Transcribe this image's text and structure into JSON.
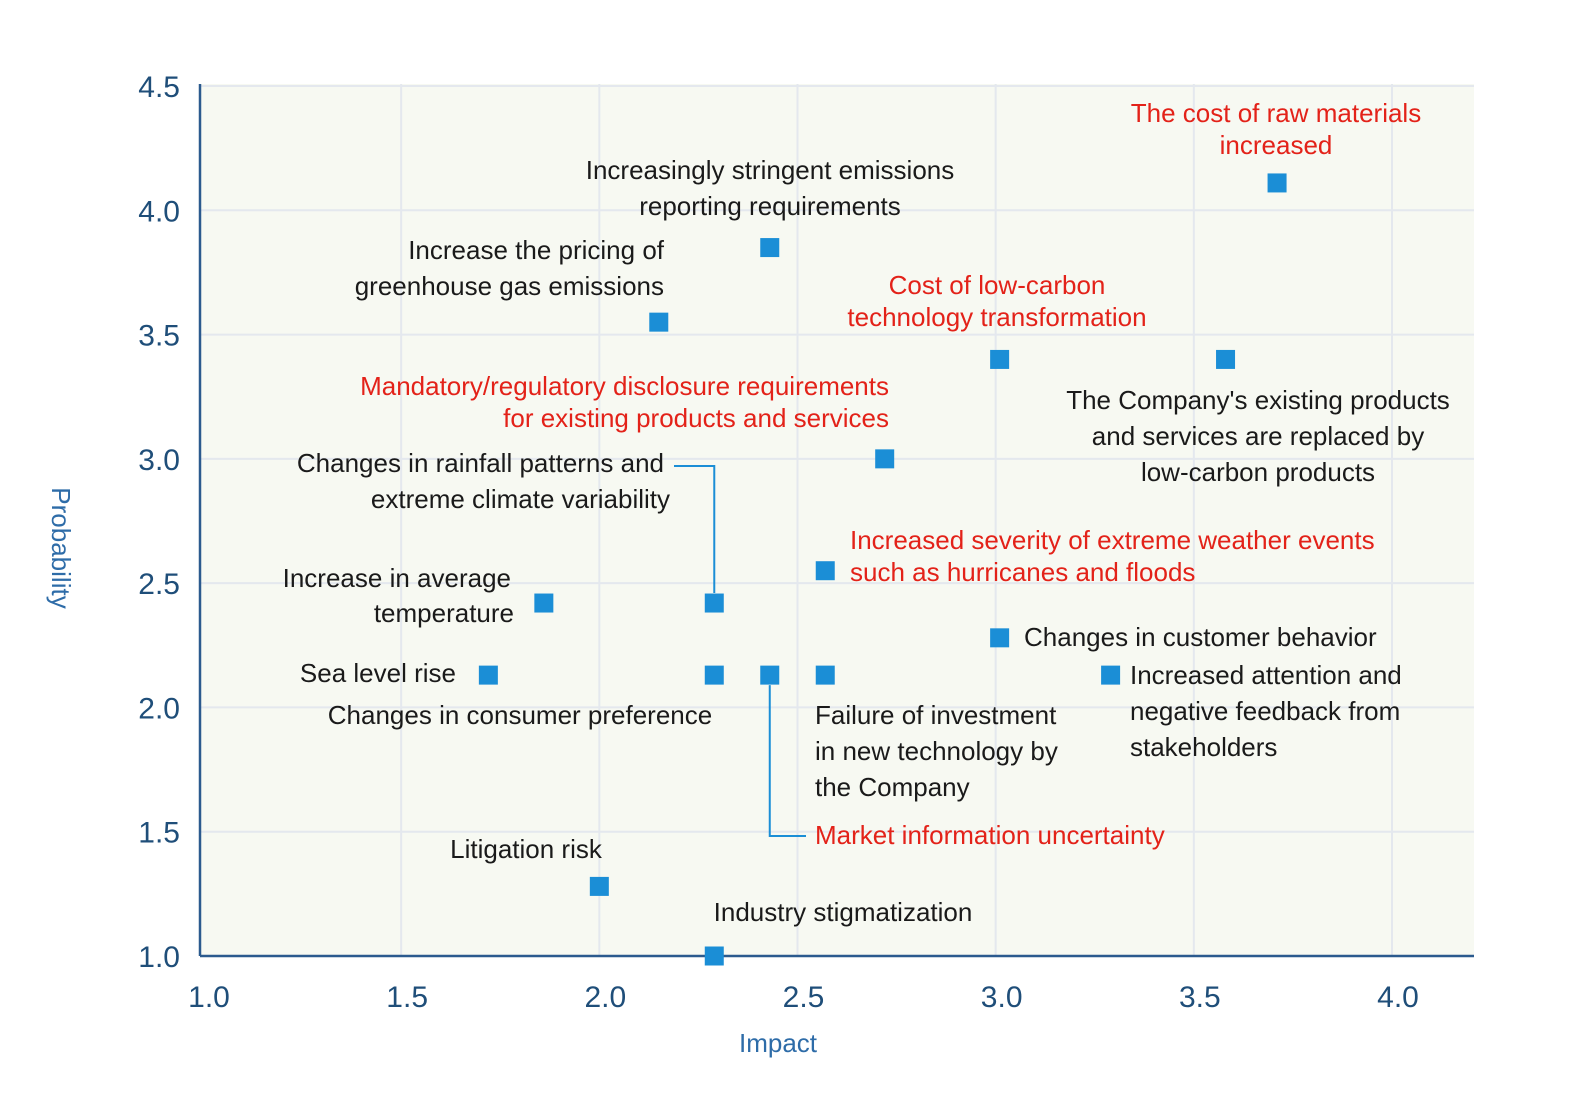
{
  "colors": {
    "plot_bg": "#f7f9f2",
    "grid": "#e4e8ee",
    "axis": "#2b5a8e",
    "point": "#1b8ed6",
    "label_default": "#1a1a1a",
    "label_highlight": "#e32219",
    "leader": "#1b8ed6"
  },
  "chart_data": {
    "type": "scatter",
    "xlabel": "Impact",
    "ylabel": "Probability",
    "xlim": [
      1.0,
      4.2
    ],
    "ylim": [
      1.0,
      4.5
    ],
    "xticks": [
      "1.0",
      "1.5",
      "2.0",
      "2.5",
      "3.0",
      "3.5",
      "4.0"
    ],
    "yticks": [
      "1.0",
      "1.5",
      "2.0",
      "2.5",
      "3.0",
      "3.5",
      "4.0",
      "4.5"
    ],
    "grid": true,
    "points": [
      {
        "id": "raw-materials",
        "x": 3.71,
        "y": 4.11
      },
      {
        "id": "stringent-reporting",
        "x": 2.43,
        "y": 3.85
      },
      {
        "id": "ghg-pricing",
        "x": 2.15,
        "y": 3.55
      },
      {
        "id": "low-carbon-transformation",
        "x": 3.01,
        "y": 3.4
      },
      {
        "id": "products-replaced",
        "x": 3.58,
        "y": 3.4
      },
      {
        "id": "disclosure-requirements",
        "x": 2.72,
        "y": 3.0
      },
      {
        "id": "rainfall-patterns",
        "x": 2.29,
        "y": 2.42
      },
      {
        "id": "extreme-weather",
        "x": 2.57,
        "y": 2.55
      },
      {
        "id": "avg-temperature",
        "x": 1.86,
        "y": 2.42
      },
      {
        "id": "customer-behavior",
        "x": 3.01,
        "y": 2.28
      },
      {
        "id": "sea-level-rise",
        "x": 1.72,
        "y": 2.13
      },
      {
        "id": "consumer-preference",
        "x": 2.29,
        "y": 2.13
      },
      {
        "id": "market-uncertainty",
        "x": 2.43,
        "y": 2.13
      },
      {
        "id": "investment-failure",
        "x": 2.57,
        "y": 2.13
      },
      {
        "id": "stakeholder-feedback",
        "x": 3.29,
        "y": 2.13
      },
      {
        "id": "litigation-risk",
        "x": 2.0,
        "y": 1.28
      },
      {
        "id": "industry-stigmatization",
        "x": 2.29,
        "y": 1.0
      }
    ],
    "annotations": [
      {
        "id": "raw-materials",
        "lines": [
          "The cost of raw materials",
          "increased"
        ],
        "highlight": true
      },
      {
        "id": "stringent-reporting",
        "lines": [
          "Increasingly stringent emissions",
          "reporting requirements"
        ],
        "highlight": false
      },
      {
        "id": "ghg-pricing",
        "lines": [
          "Increase the pricing of",
          "greenhouse gas emissions"
        ],
        "highlight": false
      },
      {
        "id": "low-carbon-transformation",
        "lines": [
          "Cost of low-carbon",
          "technology transformation"
        ],
        "highlight": true
      },
      {
        "id": "products-replaced",
        "lines": [
          "The Company's existing products",
          "and services are replaced by",
          "low-carbon products"
        ],
        "highlight": false
      },
      {
        "id": "disclosure-requirements",
        "lines": [
          "Mandatory/regulatory disclosure requirements",
          "for existing products and services"
        ],
        "highlight": true
      },
      {
        "id": "rainfall-patterns",
        "lines": [
          "Changes in rainfall patterns and",
          "extreme climate variability"
        ],
        "highlight": false
      },
      {
        "id": "extreme-weather",
        "lines": [
          "Increased severity of extreme weather events",
          "such as hurricanes and floods"
        ],
        "highlight": true
      },
      {
        "id": "avg-temperature",
        "lines": [
          "Increase in average",
          "temperature"
        ],
        "highlight": false
      },
      {
        "id": "customer-behavior",
        "lines": [
          "Changes in customer behavior"
        ],
        "highlight": false
      },
      {
        "id": "sea-level-rise",
        "lines": [
          "Sea level rise"
        ],
        "highlight": false
      },
      {
        "id": "consumer-preference",
        "lines": [
          "Changes in consumer preference"
        ],
        "highlight": false
      },
      {
        "id": "investment-failure",
        "lines": [
          "Failure of investment",
          "in new technology by",
          "the Company"
        ],
        "highlight": false
      },
      {
        "id": "stakeholder-feedback",
        "lines": [
          "Increased attention and",
          "negative feedback from",
          "stakeholders"
        ],
        "highlight": false
      },
      {
        "id": "market-uncertainty",
        "lines": [
          "Market information uncertainty"
        ],
        "highlight": true
      },
      {
        "id": "litigation-risk",
        "lines": [
          "Litigation risk"
        ],
        "highlight": false
      },
      {
        "id": "industry-stigmatization",
        "lines": [
          "Industry stigmatization"
        ],
        "highlight": false
      }
    ]
  }
}
